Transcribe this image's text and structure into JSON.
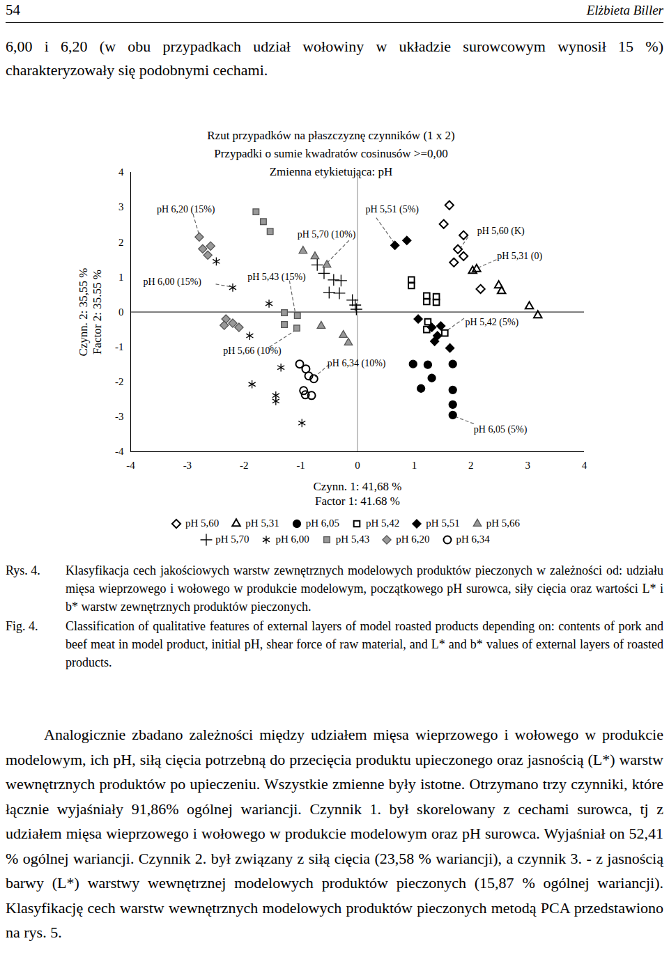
{
  "page": {
    "page_number": "54",
    "author": "Elżbieta Biller",
    "intro": "6,00 i 6,20 (w obu przypadkach udział wołowiny w układzie surowcowym wynosił 15 %) charakteryzowały się podobnymi cechami.",
    "caption_pl_label": "Rys. 4.",
    "caption_pl": "Klasyfikacja cech jakościowych warstw zewnętrznych modelowych produktów pieczonych w zależności od: udziału mięsa wieprzowego i wołowego w produkcie modelowym, początkowego pH surowca, siły cięcia oraz wartości L* i b* warstw zewnętrznych produktów pieczonych.",
    "caption_en_label": "Fig. 4.",
    "caption_en": "Classification of qualitative features of external layers of model roasted products depending on: contents of pork and beef meat in model product, initial pH, shear force of raw material, and L* and b* values of external layers of roasted products.",
    "paragraph": "Analogicznie zbadano zależności między udziałem mięsa wieprzowego i wołowego w produkcie modelowym, ich pH, siłą cięcia potrzebną do przecięcia produktu upieczonego oraz jasnością (L*) warstw wewnętrznych produktów po upieczeniu. Wszystkie zmienne były istotne. Otrzymano trzy czynniki, które łącznie wyjaśniały 91,86% ogólnej wariancji. Czynnik 1. był skorelowany z cechami surowca, tj z udziałem mięsa wieprzowego i wołowego w produkcie modelowym oraz pH surowca. Wyjaśniał on 52,41 % ogólnej wariancji. Czynnik 2. był związany z siłą cięcia (23,58 % wariancji), a czynnik 3. - z jasnością barwy (L*) warstwy wewnętrznej modelowych produktów pieczonych (15,87 % ogólnej wariancji). Klasyfikację cech warstw wewnętrznych modelowych produktów pieczonych metodą PCA przedstawiono na rys. 5."
  },
  "chart_data": {
    "type": "scatter",
    "title": "Rzut przypadków na płaszczyznę czynników (1 x 2)",
    "subtitle": [
      "Przypadki o sumie kwadratów cosinusów >=0,00",
      "Zmienna etykietująca: pH"
    ],
    "x_label": [
      "Czynn. 1: 41,68 %",
      "Factor 1: 41.68 %"
    ],
    "y_label": [
      "Czynn. 2: 35,55 %",
      "Factor 2: 35.55 %"
    ],
    "xlim": [
      -4,
      4
    ],
    "ylim": [
      -4,
      4
    ],
    "xticks": [
      -4,
      -3,
      -2,
      -1,
      0,
      1,
      2,
      3,
      4
    ],
    "yticks": [
      -4,
      -3,
      -2,
      -1,
      0,
      1,
      2,
      3,
      4
    ],
    "grid": false,
    "series": [
      {
        "name": "pH 5,60",
        "color": "#000000",
        "marker": "diamond_open",
        "values": [
          [
            1.62,
            3.06
          ],
          [
            1.52,
            2.52
          ],
          [
            1.87,
            2.2
          ],
          [
            1.77,
            1.8
          ],
          [
            1.87,
            1.6
          ],
          [
            1.7,
            1.42
          ],
          [
            2.17,
            0.66
          ]
        ]
      },
      {
        "name": "pH 5,31",
        "color": "#000000",
        "marker": "triangle_open",
        "values": [
          [
            2.03,
            1.18
          ],
          [
            2.1,
            1.23
          ],
          [
            2.49,
            0.76
          ],
          [
            2.54,
            0.6
          ],
          [
            3.03,
            0.16
          ],
          [
            3.18,
            -0.1
          ]
        ]
      },
      {
        "name": "pH 6,05",
        "color": "#000000",
        "marker": "circle_filled",
        "values": [
          [
            0.98,
            -1.49
          ],
          [
            1.24,
            -1.51
          ],
          [
            1.12,
            -2.19
          ],
          [
            1.31,
            -1.89
          ],
          [
            1.68,
            -1.49
          ],
          [
            1.68,
            -2.23
          ],
          [
            1.68,
            -2.65
          ],
          [
            1.68,
            -2.95
          ]
        ]
      },
      {
        "name": "pH 5,42",
        "color": "#000000",
        "marker": "square_open",
        "values": [
          [
            0.95,
            0.92
          ],
          [
            0.95,
            0.76
          ],
          [
            1.22,
            0.46
          ],
          [
            1.22,
            0.3
          ],
          [
            1.39,
            0.44
          ],
          [
            1.39,
            0.28
          ],
          [
            1.24,
            -0.28
          ],
          [
            1.22,
            -0.5
          ],
          [
            1.54,
            -0.6
          ]
        ]
      },
      {
        "name": "pH 5,51",
        "color": "#000000",
        "marker": "diamond_filled",
        "values": [
          [
            0.66,
            1.91
          ],
          [
            0.87,
            2.05
          ],
          [
            1.07,
            -0.2
          ],
          [
            1.31,
            -0.44
          ],
          [
            1.47,
            -0.4
          ],
          [
            1.41,
            -0.68
          ],
          [
            1.36,
            -0.84
          ],
          [
            1.63,
            -1.03
          ]
        ]
      },
      {
        "name": "pH 5,66",
        "color": "#999999",
        "marker": "triangle_filled",
        "values": [
          [
            -0.96,
            1.75
          ],
          [
            -0.75,
            1.59
          ],
          [
            -0.54,
            1.35
          ],
          [
            -0.64,
            -0.4
          ],
          [
            -0.25,
            -0.66
          ],
          [
            -0.16,
            -0.88
          ]
        ]
      },
      {
        "name": "pH 5,70",
        "color": "#000000",
        "marker": "plus",
        "values": [
          [
            -0.71,
            1.35
          ],
          [
            -0.59,
            1.11
          ],
          [
            -0.42,
            0.92
          ],
          [
            -0.29,
            0.9
          ],
          [
            -0.5,
            0.56
          ],
          [
            -0.32,
            0.54
          ],
          [
            -0.09,
            0.34
          ],
          [
            -0.04,
            0.2
          ],
          [
            -0.02,
            0.08
          ]
        ]
      },
      {
        "name": "pH 6,00",
        "color": "#000000",
        "marker": "asterisk",
        "values": [
          [
            -2.49,
            1.45
          ],
          [
            -2.2,
            0.7
          ],
          [
            -1.56,
            0.24
          ],
          [
            -1.9,
            -0.68
          ],
          [
            -1.35,
            -1.59
          ],
          [
            -1.86,
            -2.07
          ],
          [
            -1.44,
            -2.39
          ],
          [
            -1.44,
            -2.55
          ],
          [
            -0.98,
            -3.18
          ]
        ]
      },
      {
        "name": "pH 5,43",
        "color": "#999999",
        "marker": "square_filled",
        "values": [
          [
            -1.79,
            2.87
          ],
          [
            -1.66,
            2.59
          ],
          [
            -1.54,
            2.31
          ],
          [
            -1.29,
            -0.02
          ],
          [
            -1.29,
            -0.36
          ],
          [
            -1.06,
            -0.1
          ],
          [
            -1.07,
            -0.46
          ]
        ]
      },
      {
        "name": "pH 6,20",
        "color": "#999999",
        "marker": "diamond_filled",
        "values": [
          [
            -2.79,
            2.15
          ],
          [
            -2.73,
            1.81
          ],
          [
            -2.59,
            1.89
          ],
          [
            -2.64,
            1.63
          ],
          [
            -2.32,
            -0.2
          ],
          [
            -2.2,
            -0.32
          ],
          [
            -2.09,
            -0.44
          ],
          [
            -2.35,
            -0.38
          ]
        ]
      },
      {
        "name": "pH 6,34",
        "color": "#000000",
        "marker": "circle_open",
        "values": [
          [
            -1.02,
            -1.49
          ],
          [
            -0.91,
            -1.63
          ],
          [
            -0.86,
            -1.83
          ],
          [
            -0.77,
            -1.91
          ],
          [
            -0.95,
            -2.25
          ],
          [
            -0.81,
            -2.39
          ],
          [
            -0.92,
            -2.37
          ]
        ]
      }
    ],
    "annotations": [
      {
        "text": "pH 6,20 (15%)",
        "x": -3.54,
        "y": 2.95,
        "from": [
          -2.9,
          2.8
        ],
        "to": [
          -2.8,
          2.25
        ]
      },
      {
        "text": "pH 5,51 (5%)",
        "x": 0.14,
        "y": 2.95,
        "from": [
          0.33,
          2.7
        ],
        "to": [
          0.66,
          1.95
        ]
      },
      {
        "text": "pH 5,70 (10%)",
        "x": -1.06,
        "y": 2.23,
        "from": [
          -0.15,
          2.05
        ],
        "to": [
          -0.6,
          1.3
        ]
      },
      {
        "text": "pH 5,60 (K)",
        "x": 2.11,
        "y": 2.33,
        "from": [
          1.95,
          2.15
        ],
        "to": [
          1.8,
          1.8
        ]
      },
      {
        "text": "pH 5,31 (0)",
        "x": 2.46,
        "y": 1.61,
        "from": [
          2.45,
          1.5
        ],
        "to": [
          2.1,
          1.25
        ]
      },
      {
        "text": "pH 6,00 (15%)",
        "x": -3.78,
        "y": 0.86,
        "from": [
          -2.5,
          0.8
        ],
        "to": [
          -2.22,
          0.72
        ]
      },
      {
        "text": "pH 5,43 (15%)",
        "x": -1.94,
        "y": 1.0,
        "from": [
          -1.2,
          0.9
        ],
        "to": [
          -1.1,
          0.0
        ]
      },
      {
        "text": "pH 5,42 (5%)",
        "x": 1.9,
        "y": -0.28,
        "from": [
          1.88,
          -0.18
        ],
        "to": [
          1.56,
          -0.55
        ]
      },
      {
        "text": "pH 5,66 (10%)",
        "x": -2.37,
        "y": -1.11,
        "from": [
          -1.55,
          -1.0
        ],
        "to": [
          -1.07,
          -0.5
        ]
      },
      {
        "text": "pH 6,34 (10%)",
        "x": -0.53,
        "y": -1.47,
        "from": [
          -0.5,
          -1.5
        ],
        "to": [
          -0.75,
          -1.85
        ]
      },
      {
        "text": "pH 6,05 (5%)",
        "x": 2.05,
        "y": -3.36,
        "from": [
          2.05,
          -3.2
        ],
        "to": [
          1.7,
          -2.98
        ]
      }
    ]
  }
}
